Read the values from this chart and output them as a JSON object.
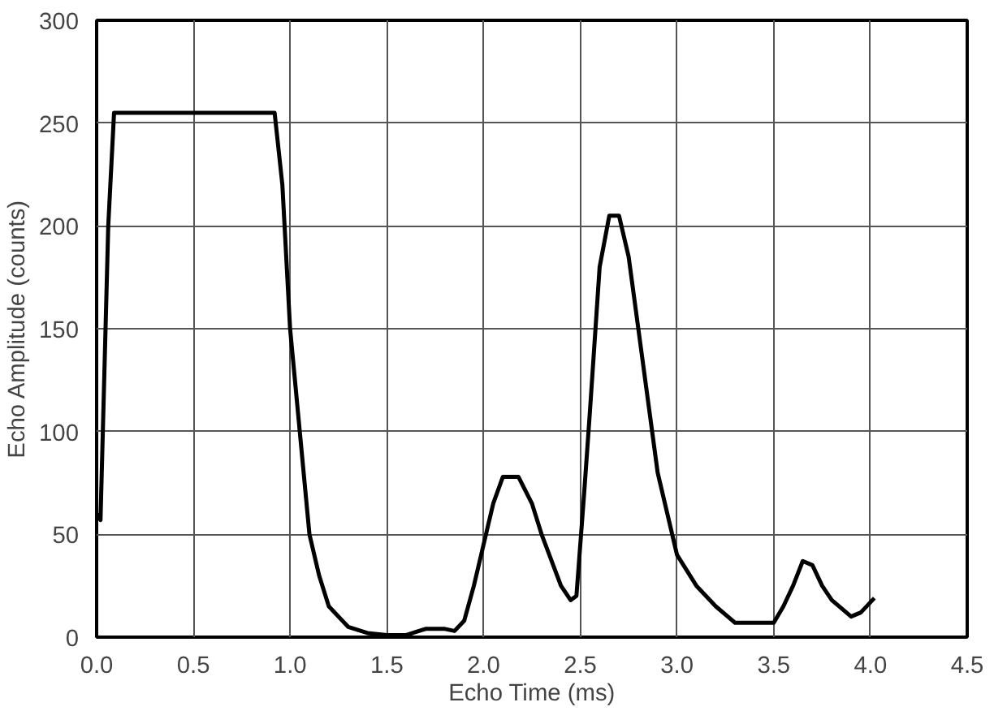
{
  "chart_data": {
    "type": "line",
    "xlabel": "Echo Time (ms)",
    "ylabel": "Echo Amplitude (counts)",
    "x": [
      0.0,
      0.02,
      0.06,
      0.09,
      0.5,
      0.92,
      0.96,
      1.0,
      1.05,
      1.1,
      1.15,
      1.2,
      1.3,
      1.4,
      1.5,
      1.6,
      1.7,
      1.8,
      1.85,
      1.9,
      1.95,
      2.0,
      2.05,
      2.1,
      2.18,
      2.25,
      2.3,
      2.4,
      2.45,
      2.48,
      2.52,
      2.55,
      2.6,
      2.65,
      2.7,
      2.75,
      2.8,
      2.9,
      3.0,
      3.1,
      3.2,
      3.3,
      3.4,
      3.5,
      3.55,
      3.6,
      3.65,
      3.7,
      3.75,
      3.8,
      3.9,
      3.95,
      4.02
    ],
    "series": [
      {
        "color": "#000000",
        "values": [
          60,
          57,
          200,
          255,
          255,
          255,
          220,
          150,
          100,
          50,
          30,
          15,
          5,
          2,
          1,
          1,
          4,
          4,
          3,
          8,
          25,
          45,
          65,
          78,
          78,
          65,
          50,
          25,
          18,
          20,
          70,
          110,
          180,
          205,
          205,
          185,
          150,
          80,
          40,
          25,
          15,
          7,
          7,
          7,
          15,
          25,
          37,
          35,
          25,
          18,
          10,
          12,
          19
        ]
      }
    ],
    "xlim": [
      0,
      4.5
    ],
    "ylim": [
      0,
      300
    ],
    "xticks": [
      {
        "value": 0,
        "label": "0.0"
      },
      0.5,
      {
        "value": 1,
        "label": "1.0"
      },
      1.5,
      {
        "value": 2,
        "label": "2.0"
      },
      2.5,
      {
        "value": 3,
        "label": "3.0"
      },
      3.5,
      {
        "value": 4,
        "label": "4.0"
      },
      4.5
    ],
    "yticks": [
      0,
      50,
      100,
      150,
      200,
      250,
      300
    ],
    "grid": true,
    "marker": "none",
    "line_style": "solid"
  }
}
